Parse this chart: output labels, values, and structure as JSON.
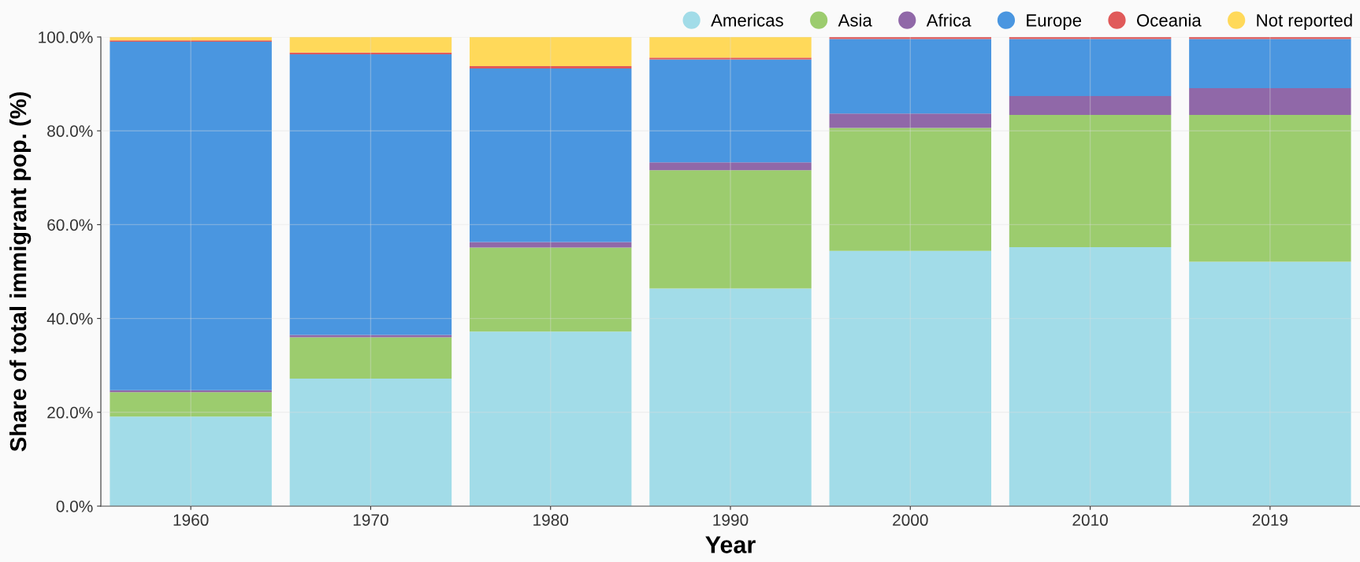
{
  "chart_data": {
    "type": "bar",
    "stacked": true,
    "xlabel": "Year",
    "ylabel": "Share of total immigrant pop. (%)",
    "categories": [
      "1960",
      "1970",
      "1980",
      "1990",
      "2000",
      "2010",
      "2019"
    ],
    "series": [
      {
        "name": "Americas",
        "color": "#a2dce8",
        "values": [
          19.1,
          27.2,
          37.2,
          46.4,
          54.4,
          55.2,
          52.1
        ]
      },
      {
        "name": "Asia",
        "color": "#9ccc6e",
        "values": [
          5.2,
          8.8,
          17.9,
          25.2,
          26.2,
          28.2,
          31.3
        ]
      },
      {
        "name": "Africa",
        "color": "#9068a8",
        "values": [
          0.4,
          0.5,
          1.2,
          1.7,
          3.1,
          4.0,
          5.7
        ]
      },
      {
        "name": "Europe",
        "color": "#4a96e0",
        "values": [
          74.3,
          59.8,
          37.0,
          21.9,
          15.9,
          12.2,
          10.5
        ]
      },
      {
        "name": "Oceania",
        "color": "#e05a5a",
        "values": [
          0.3,
          0.4,
          0.5,
          0.4,
          0.4,
          0.4,
          0.4
        ]
      },
      {
        "name": "Not reported",
        "color": "#ffd95a",
        "values": [
          0.7,
          3.3,
          6.2,
          4.4,
          0.0,
          0.0,
          0.0
        ]
      }
    ],
    "ylim": [
      0,
      100
    ],
    "yticks": [
      {
        "value": 0,
        "label": "0.0%"
      },
      {
        "value": 20,
        "label": "20.0%"
      },
      {
        "value": 40,
        "label": "40.0%"
      },
      {
        "value": 60,
        "label": "60.0%"
      },
      {
        "value": 80,
        "label": "80.0%"
      },
      {
        "value": 100,
        "label": "100.0%"
      }
    ],
    "grid": true,
    "legend": "top right"
  }
}
